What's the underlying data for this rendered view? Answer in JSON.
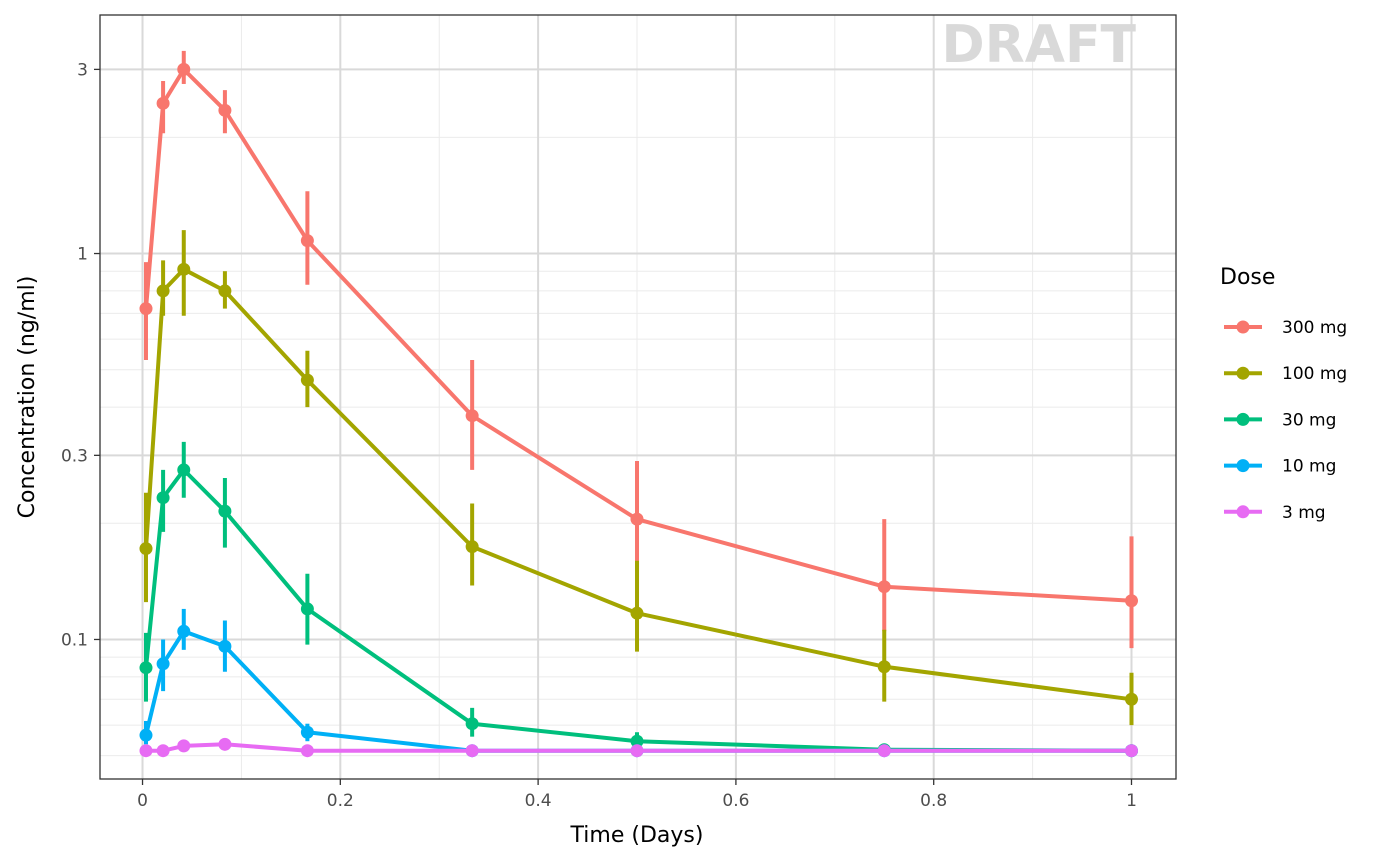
{
  "chart_data": {
    "type": "line",
    "watermark": "DRAFT",
    "xlabel": "Time (Days)",
    "ylabel": "Concentration (ng/ml)",
    "xlim": [
      -0.043,
      1.045
    ],
    "ylim": [
      0.0435,
      4.15
    ],
    "y_scale": "log10",
    "x_ticks": [
      0,
      0.2,
      0.4,
      0.6,
      0.8,
      1
    ],
    "x_tick_labels": [
      "0",
      "0.2",
      "0.4",
      "0.6",
      "0.8",
      "1"
    ],
    "y_ticks": [
      0.1,
      0.3,
      1,
      3
    ],
    "y_tick_labels": [
      "0.1",
      "0.3",
      "1",
      "3"
    ],
    "y_minor_ticks": [
      0.05,
      0.06,
      0.07,
      0.08,
      0.09,
      0.2,
      0.4,
      0.5,
      0.6,
      0.7,
      0.8,
      0.9,
      2
    ],
    "grid": true,
    "legend": {
      "title": "Dose",
      "position": "right"
    },
    "x": [
      0.0035,
      0.0208,
      0.0417,
      0.0833,
      0.1667,
      0.3333,
      0.5,
      0.75,
      1.0
    ],
    "series": [
      {
        "name": "300 mg",
        "color": "#F8766D",
        "y": [
          0.72,
          2.45,
          3.0,
          2.35,
          1.08,
          0.38,
          0.205,
          0.137,
          0.126
        ],
        "lower": [
          0.53,
          2.05,
          2.75,
          2.05,
          0.83,
          0.275,
          0.15,
          0.105,
          0.095
        ],
        "upper": [
          0.95,
          2.8,
          3.35,
          2.65,
          1.45,
          0.53,
          0.29,
          0.205,
          0.185
        ]
      },
      {
        "name": "100 mg",
        "color": "#A3A500",
        "y": [
          0.172,
          0.8,
          0.91,
          0.8,
          0.47,
          0.174,
          0.117,
          0.085,
          0.07
        ],
        "lower": [
          0.125,
          0.69,
          0.69,
          0.72,
          0.4,
          0.138,
          0.093,
          0.069,
          0.06
        ],
        "upper": [
          0.24,
          0.96,
          1.15,
          0.9,
          0.56,
          0.225,
          0.16,
          0.106,
          0.082
        ]
      },
      {
        "name": "30 mg",
        "color": "#00BF7D",
        "y": [
          0.0845,
          0.233,
          0.275,
          0.215,
          0.12,
          0.0605,
          0.0545,
          0.0518,
          0.0515
        ],
        "lower": [
          0.069,
          0.19,
          0.233,
          0.173,
          0.097,
          0.056,
          0.052,
          0.0505,
          0.0505
        ],
        "upper": [
          0.104,
          0.275,
          0.325,
          0.262,
          0.148,
          0.0665,
          0.0575,
          0.053,
          0.053
        ]
      },
      {
        "name": "10 mg",
        "color": "#00B0F6",
        "y": [
          0.0565,
          0.0865,
          0.105,
          0.096,
          0.0575,
          0.0515,
          0.0515,
          0.0515,
          0.0515
        ],
        "lower": [
          0.0535,
          0.0735,
          0.094,
          0.0825,
          0.0545,
          0.0505,
          0.0505,
          0.0505,
          0.0505
        ],
        "upper": [
          0.0615,
          0.1,
          0.12,
          0.112,
          0.0605,
          0.0525,
          0.0525,
          0.0525,
          0.0525
        ]
      },
      {
        "name": "3 mg",
        "color": "#E76BF3",
        "y": [
          0.0515,
          0.0515,
          0.053,
          0.0535,
          0.0515,
          0.0515,
          0.0515,
          0.0515,
          0.0515
        ],
        "lower": [
          0.0505,
          0.0505,
          0.052,
          0.0525,
          0.0505,
          0.0505,
          0.0505,
          0.0505,
          0.0505
        ],
        "upper": [
          0.0525,
          0.0525,
          0.054,
          0.0545,
          0.0525,
          0.0525,
          0.0525,
          0.0525,
          0.0525
        ]
      }
    ]
  }
}
